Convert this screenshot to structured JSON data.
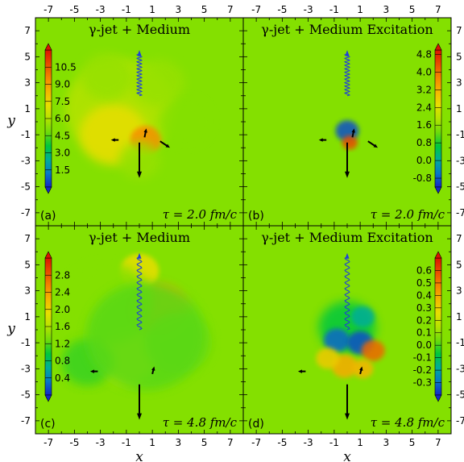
{
  "chart_data": {
    "type": "heatmap",
    "xlabel": "x",
    "ylabel": "y",
    "xlim": [
      -8,
      8
    ],
    "ylim": [
      -8,
      8
    ],
    "x_ticks": [
      "-7",
      "-5",
      "-3",
      "-1",
      "1",
      "3",
      "5",
      "7"
    ],
    "y_ticks": [
      "7",
      "5",
      "3",
      "1",
      "-1",
      "-3",
      "-5",
      "-7"
    ],
    "panels": [
      {
        "id": "a",
        "letter": "(a)",
        "title": "γ-jet + Medium",
        "tau": "τ = 2.0 fm/c",
        "colorbar_side": "left",
        "colorbar_ticks": [
          "10.5",
          "9.0",
          "7.5",
          "6.0",
          "4.5",
          "3.0",
          "1.5"
        ],
        "colorbar_range": [
          0,
          12
        ],
        "blobs": [
          {
            "x": -1.5,
            "y": 1.0,
            "r": 4.2,
            "v": 0.5
          },
          {
            "x": 1.5,
            "y": 3.0,
            "r": 2.0,
            "v": 0.45
          },
          {
            "x": -2.0,
            "y": -1.0,
            "r": 2.6,
            "v": 0.6
          },
          {
            "x": 0.5,
            "y": -1.4,
            "r": 1.2,
            "v": 0.78
          },
          {
            "x": -2.5,
            "y": 3.5,
            "r": 2.0,
            "v": 0.45
          },
          {
            "x": 3.5,
            "y": 0.0,
            "r": 2.0,
            "v": 0.42
          },
          {
            "x": 0.0,
            "y": -3.0,
            "r": 1.6,
            "v": 0.45
          }
        ],
        "photon": {
          "x": 0.0,
          "y0": 2.0,
          "y1": 5.2
        },
        "jet_arrow": {
          "x": 0.0,
          "y0": -1.6,
          "y1": -4.2
        },
        "small_arrows": [
          {
            "x": -1.6,
            "y": -1.4,
            "dx": -0.4,
            "dy": 0.0
          },
          {
            "x": 0.4,
            "y": -1.2,
            "dx": 0.1,
            "dy": 0.5
          },
          {
            "x": 1.6,
            "y": -1.5,
            "dx": 0.6,
            "dy": -0.4
          }
        ]
      },
      {
        "id": "b",
        "letter": "(b)",
        "title": "γ-jet + Medium Excitation",
        "tau": "τ = 2.0 fm/c",
        "colorbar_side": "right",
        "colorbar_ticks": [
          "4.8",
          "4.0",
          "3.2",
          "2.4",
          "1.6",
          "0.8",
          "0.0",
          "-0.8"
        ],
        "colorbar_range": [
          -1.2,
          5.0
        ],
        "blobs": [
          {
            "x": 0.0,
            "y": -0.7,
            "r": 0.9,
            "v": 0.05
          },
          {
            "x": 0.2,
            "y": -1.6,
            "r": 0.6,
            "v": 0.9
          }
        ],
        "photon": {
          "x": 0.0,
          "y0": 2.0,
          "y1": 5.2
        },
        "jet_arrow": {
          "x": 0.0,
          "y0": -1.6,
          "y1": -4.2
        },
        "small_arrows": [
          {
            "x": -1.6,
            "y": -1.4,
            "dx": -0.4,
            "dy": 0.0
          },
          {
            "x": 0.4,
            "y": -1.2,
            "dx": 0.1,
            "dy": 0.5
          },
          {
            "x": 1.6,
            "y": -1.5,
            "dx": 0.6,
            "dy": -0.4
          }
        ]
      },
      {
        "id": "c",
        "letter": "(c)",
        "title": "γ-jet + Medium",
        "tau": "τ = 4.8 fm/c",
        "colorbar_side": "left",
        "colorbar_ticks": [
          "2.8",
          "2.4",
          "2.0",
          "1.6",
          "1.2",
          "0.8",
          "0.4"
        ],
        "colorbar_range": [
          0,
          3.2
        ],
        "blobs": [
          {
            "x": 1.5,
            "y": 1.5,
            "r": 2.2,
            "v": 0.75
          },
          {
            "x": 0.0,
            "y": 4.5,
            "r": 1.5,
            "v": 0.6
          },
          {
            "x": -1.0,
            "y": -2.0,
            "r": 2.4,
            "v": 0.55
          },
          {
            "x": -2.5,
            "y": 2.0,
            "r": 3.5,
            "v": 0.42
          },
          {
            "x": 3.0,
            "y": -1.0,
            "r": 2.6,
            "v": 0.4
          },
          {
            "x": -4.0,
            "y": -2.5,
            "r": 2.0,
            "v": 0.35
          },
          {
            "x": 0.5,
            "y": -0.5,
            "r": 4.6,
            "v": 0.38
          }
        ],
        "photon": {
          "x": 0.0,
          "y0": 0.0,
          "y1": 5.6
        },
        "jet_arrow": {
          "x": 0.0,
          "y0": -4.2,
          "y1": -6.8
        },
        "small_arrows": [
          {
            "x": -3.2,
            "y": -3.2,
            "dx": -0.4,
            "dy": 0.0
          },
          {
            "x": 1.0,
            "y": -3.4,
            "dx": 0.1,
            "dy": 0.4
          }
        ]
      },
      {
        "id": "d",
        "letter": "(d)",
        "title": "γ-jet + Medium Excitation",
        "tau": "τ = 4.8 fm/c",
        "colorbar_side": "right",
        "colorbar_ticks": [
          "0.6",
          "0.5",
          "0.4",
          "0.3",
          "0.2",
          "0.1",
          "0.0",
          "-0.1",
          "-0.2",
          "-0.3"
        ],
        "colorbar_range": [
          -0.4,
          0.7
        ],
        "blobs": [
          {
            "x": 0.0,
            "y": 0.2,
            "r": 2.2,
            "v": 0.3
          },
          {
            "x": -0.8,
            "y": -0.8,
            "r": 1.0,
            "v": 0.08
          },
          {
            "x": 1.0,
            "y": -1.0,
            "r": 1.0,
            "v": 0.05
          },
          {
            "x": 1.2,
            "y": 1.0,
            "r": 0.9,
            "v": 0.2
          },
          {
            "x": 2.0,
            "y": -1.6,
            "r": 0.9,
            "v": 0.85
          },
          {
            "x": -0.2,
            "y": -2.8,
            "r": 1.0,
            "v": 0.72
          },
          {
            "x": -1.5,
            "y": -2.2,
            "r": 0.9,
            "v": 0.65
          },
          {
            "x": 1.2,
            "y": -3.0,
            "r": 0.8,
            "v": 0.7
          }
        ],
        "photon": {
          "x": 0.0,
          "y0": 0.0,
          "y1": 5.6
        },
        "jet_arrow": {
          "x": 0.0,
          "y0": -4.2,
          "y1": -6.8
        },
        "small_arrows": [
          {
            "x": -3.2,
            "y": -3.2,
            "dx": -0.4,
            "dy": 0.0
          },
          {
            "x": 1.0,
            "y": -3.4,
            "dx": 0.1,
            "dy": 0.4
          }
        ]
      }
    ]
  },
  "colors": {
    "background_field": "#84e000",
    "photon": "#1f3fd8",
    "arrow": "#000000"
  }
}
